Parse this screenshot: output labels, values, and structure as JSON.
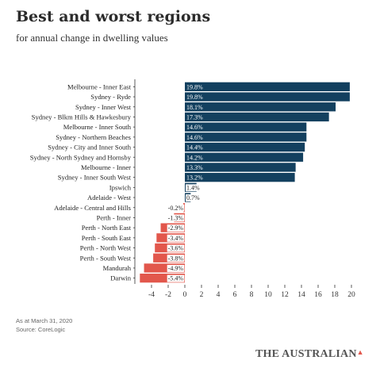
{
  "header": {
    "title": "Best and worst regions",
    "subtitle": "for annual change in dwelling values"
  },
  "footer": {
    "note": "As at March 31, 2020",
    "source": "Source: CoreLogic",
    "brand": "THE AUSTRALIAN"
  },
  "colors": {
    "positive": "#13405f",
    "negative": "#e2574c",
    "axis": "#333333"
  },
  "chart_data": {
    "type": "bar",
    "orientation": "horizontal",
    "title": "Best and worst regions",
    "subtitle": "for annual change in dwelling values",
    "categories": [
      "Melbourne - Inner East",
      "Sydney - Ryde",
      "Sydney - Inner West",
      "Sydney - Blkm Hills & Hawkesbury",
      "Melbourne - Inner South",
      "Sydney - Northern Beaches",
      "Sydney - City and Inner South",
      "Sydney - North Sydney and Hornsby",
      "Melbourne - Inner",
      "Sydney - Inner South West",
      "Ipswich",
      "Adelaide - West",
      "Adelaide - Central and Hills",
      "Perth - Inner",
      "Perth - North East",
      "Perth - South East",
      "Perth - North West",
      "Perth - South West",
      "Mandurah",
      "Darwin"
    ],
    "values": [
      19.8,
      19.8,
      18.1,
      17.3,
      14.6,
      14.6,
      14.4,
      14.2,
      13.3,
      13.2,
      1.4,
      0.7,
      -0.2,
      -1.3,
      -2.9,
      -3.4,
      -3.6,
      -3.8,
      -4.9,
      -5.4
    ],
    "value_labels": [
      "19.8%",
      "19.8%",
      "18.1%",
      "17.3%",
      "14.6%",
      "14.6%",
      "14.4%",
      "14.2%",
      "13.3%",
      "13.2%",
      "1.4%",
      "0.7%",
      "-0.2%",
      "-1.3%",
      "-2.9%",
      "-3.4%",
      "-3.6%",
      "-3.8%",
      "-4.9%",
      "-5.4%"
    ],
    "xlim": [
      -5.4,
      20.7
    ],
    "x_ticks": [
      -4,
      -2,
      0,
      2,
      4,
      6,
      8,
      10,
      12,
      14,
      16,
      18,
      20
    ],
    "tick_labels": [
      "-4",
      "-2",
      "0",
      "2",
      "4",
      "6",
      "8",
      "10",
      "12",
      "14",
      "16",
      "18",
      "20"
    ],
    "grid": false,
    "legend": "none"
  }
}
